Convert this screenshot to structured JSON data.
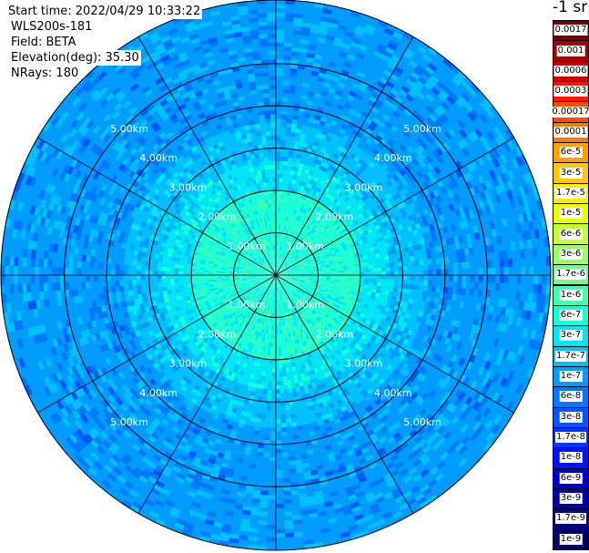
{
  "info": {
    "start_time": "Start time: 2022/04/29 10:33:22",
    "instrument": "WLS200s-181",
    "field": "Field: BETA",
    "elevation": "Elevation(deg): 35.30",
    "nrays": "NRays: 180"
  },
  "colorbar": {
    "unit": "-1 sr",
    "bands": [
      {
        "color": "#7a0000",
        "label": "0.0017"
      },
      {
        "color": "#a80000",
        "label": "0.001"
      },
      {
        "color": "#d20000",
        "label": "0.0006"
      },
      {
        "color": "#ff1500",
        "label": "0.0003"
      },
      {
        "color": "#ff4d00",
        "label": "0.00017"
      },
      {
        "color": "#ff7a00",
        "label": "0.0001"
      },
      {
        "color": "#ffa000",
        "label": "6e-5"
      },
      {
        "color": "#ffc800",
        "label": "3e-5"
      },
      {
        "color": "#ffee00",
        "label": "1.7e-5"
      },
      {
        "color": "#eaff00",
        "label": "1e-5"
      },
      {
        "color": "#c4ff2e",
        "label": "6e-6"
      },
      {
        "color": "#98ff5c",
        "label": "3e-6"
      },
      {
        "color": "#6cff88",
        "label": "1.7e-6"
      },
      {
        "color": "#40ffb0",
        "label": "1e-6"
      },
      {
        "color": "#18ffd8",
        "label": "6e-7"
      },
      {
        "color": "#00e6f6",
        "label": "3e-7"
      },
      {
        "color": "#00c0ff",
        "label": "1.7e-7"
      },
      {
        "color": "#009cff",
        "label": "1e-7"
      },
      {
        "color": "#0078ff",
        "label": "6e-8"
      },
      {
        "color": "#0056ff",
        "label": "3e-8"
      },
      {
        "color": "#0034ff",
        "label": "1.7e-8"
      },
      {
        "color": "#0014f4",
        "label": "1e-8"
      },
      {
        "color": "#0000d8",
        "label": "6e-9"
      },
      {
        "color": "#0000b0",
        "label": "3e-9"
      },
      {
        "color": "#00008a",
        "label": "1.7e-9"
      },
      {
        "color": "#000060",
        "label": "1e-9"
      }
    ]
  },
  "chart_data": {
    "type": "heatmap",
    "projection": "polar-ppi",
    "field": "BETA",
    "range_rings_km": [
      1,
      2,
      3,
      4,
      5
    ],
    "range_ring_labels": [
      "1.00km",
      "2.00km",
      "3.00km",
      "4.00km",
      "5.00km"
    ],
    "max_range_km": 6.5,
    "spoke_interval_deg": 30,
    "nrays": 180,
    "range_zones": [
      {
        "from_km": 0.0,
        "to_km": 1.0,
        "typical": "6e-7"
      },
      {
        "from_km": 1.0,
        "to_km": 2.0,
        "typical": "6e-7"
      },
      {
        "from_km": 2.0,
        "to_km": 2.7,
        "typical": "3e-7"
      },
      {
        "from_km": 2.7,
        "to_km": 3.6,
        "typical": "1.7e-7"
      },
      {
        "from_km": 3.6,
        "to_km": 6.5,
        "typical": "1e-7"
      }
    ]
  }
}
